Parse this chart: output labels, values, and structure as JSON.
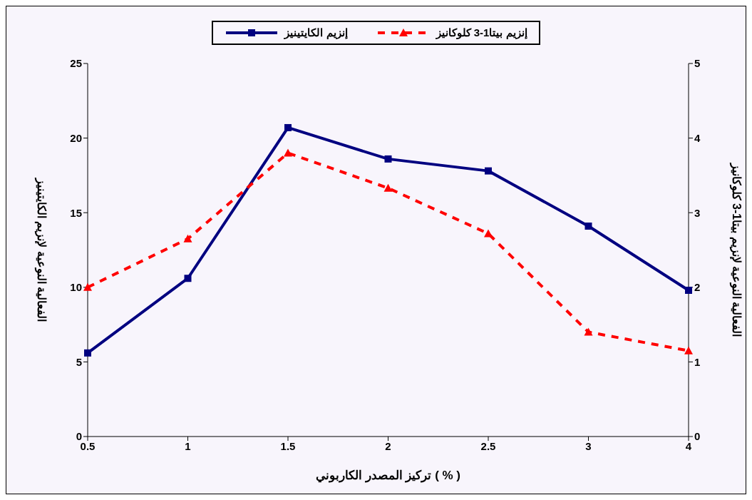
{
  "chart_data": {
    "type": "line",
    "categories": [
      "0.5",
      "1",
      "1.5",
      "2",
      "2.5",
      "3",
      "4"
    ],
    "xlabel": "تركيز المصدر الكاربوني ( % )",
    "ylabel": "الفعالية النوعية لإنزيم الكايتينيز",
    "y2label": "الفعالية النوعية لإنزيم بيتا1-3 كلوكانيز",
    "ylim": [
      0,
      25
    ],
    "yticks": [
      0,
      5,
      10,
      15,
      20,
      25
    ],
    "y2lim": [
      0,
      5
    ],
    "y2ticks": [
      0,
      1,
      2,
      3,
      4,
      5
    ],
    "grid": false,
    "legend": "top",
    "series": [
      {
        "name": "إنزيم الكايتينيز",
        "color": "#000080",
        "marker": "square",
        "line_style": "solid",
        "values": [
          5.6,
          10.6,
          20.7,
          18.6,
          17.8,
          14.1,
          9.8
        ]
      },
      {
        "name": "إنزيم بيتا1-3 كلوكانيز",
        "color": "#ff0000",
        "marker": "triangle",
        "line_style": "dashed",
        "axis": "y2",
        "values": [
          2.0,
          2.65,
          3.8,
          3.33,
          2.72,
          1.4,
          1.15
        ]
      }
    ]
  }
}
